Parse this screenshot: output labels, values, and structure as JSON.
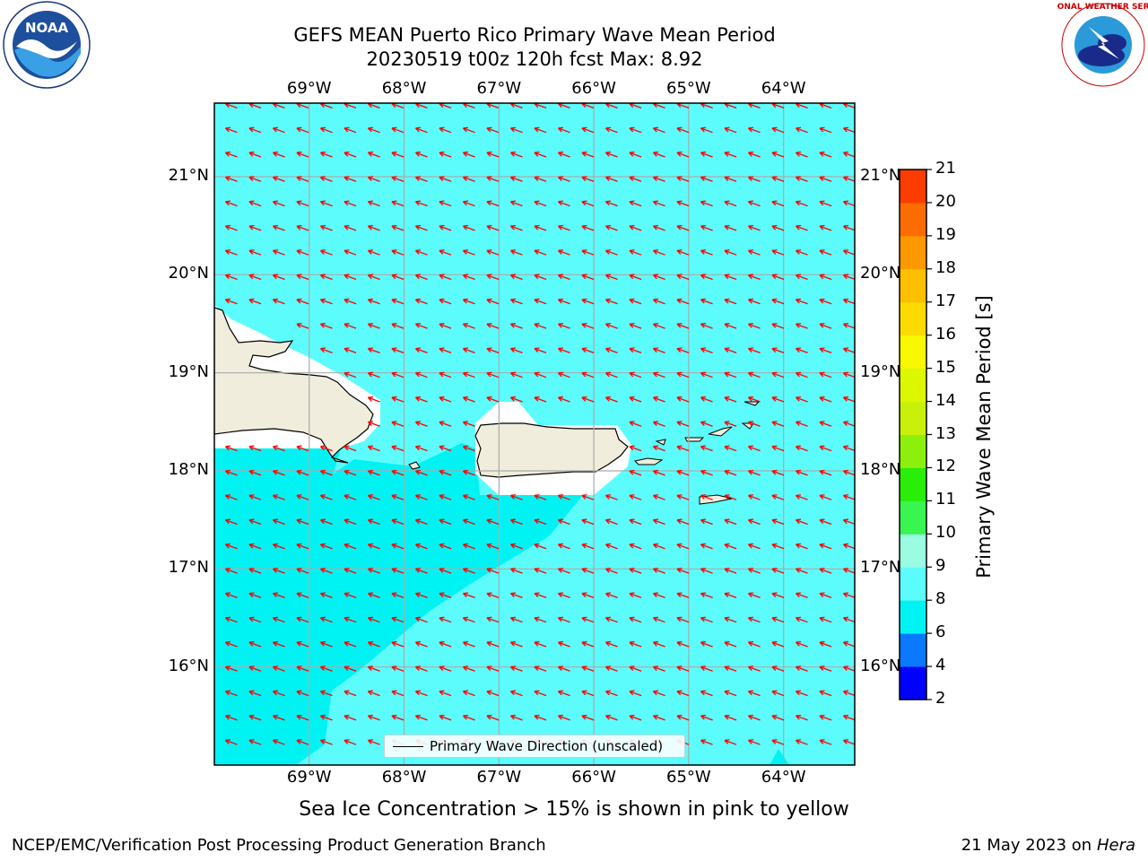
{
  "title": {
    "line1": "GEFS MEAN Puerto Rico Primary Wave Mean Period",
    "line2": "20230519 t00z 120h fcst   Max: 8.92"
  },
  "logos": {
    "noaa": {
      "text": "NOAA",
      "icon": "noaa-logo-icon"
    },
    "nws": {
      "text": "NATIONAL WEATHER SERVICE",
      "icon": "nws-logo-icon"
    }
  },
  "map": {
    "lon_labels": [
      "69°W",
      "68°W",
      "67°W",
      "66°W",
      "65°W",
      "64°W"
    ],
    "lat_labels": [
      "21°N",
      "20°N",
      "19°N",
      "18°N",
      "17°N",
      "16°N"
    ],
    "extent": {
      "lon": [
        -70.0,
        -63.25
      ],
      "lat": [
        15.0,
        21.75
      ]
    },
    "ocean_color": "#5dfcfc",
    "low_period_color": "#00f3f3",
    "land_color": "#f0eddc",
    "arrow_color": "#ff0000",
    "arrow_direction": "toward west-southwest"
  },
  "legend": {
    "label": "Primary Wave Direction (unscaled)"
  },
  "colorbar": {
    "label": "Primary Wave Mean Period [s]",
    "ticks": [
      "2",
      "4",
      "6",
      "8",
      "9",
      "10",
      "11",
      "12",
      "13",
      "14",
      "15",
      "16",
      "17",
      "18",
      "19",
      "20",
      "21"
    ],
    "colors": [
      "#0000ff",
      "#0a78ff",
      "#00f3f3",
      "#5dfcfc",
      "#9afce0",
      "#38f550",
      "#28ee08",
      "#8cf00c",
      "#c8f008",
      "#dcf800",
      "#f8f800",
      "#fcdc00",
      "#fcc000",
      "#fc9800",
      "#fc6c00",
      "#fc3c00",
      "#fc0000"
    ]
  },
  "note": "Sea Ice Concentration > 15% is shown in pink to yellow",
  "footer": {
    "credit": "NCEP/EMC/Verification Post Processing Product Generation Branch",
    "date": "21 May 2023 on",
    "host": "Hera"
  }
}
